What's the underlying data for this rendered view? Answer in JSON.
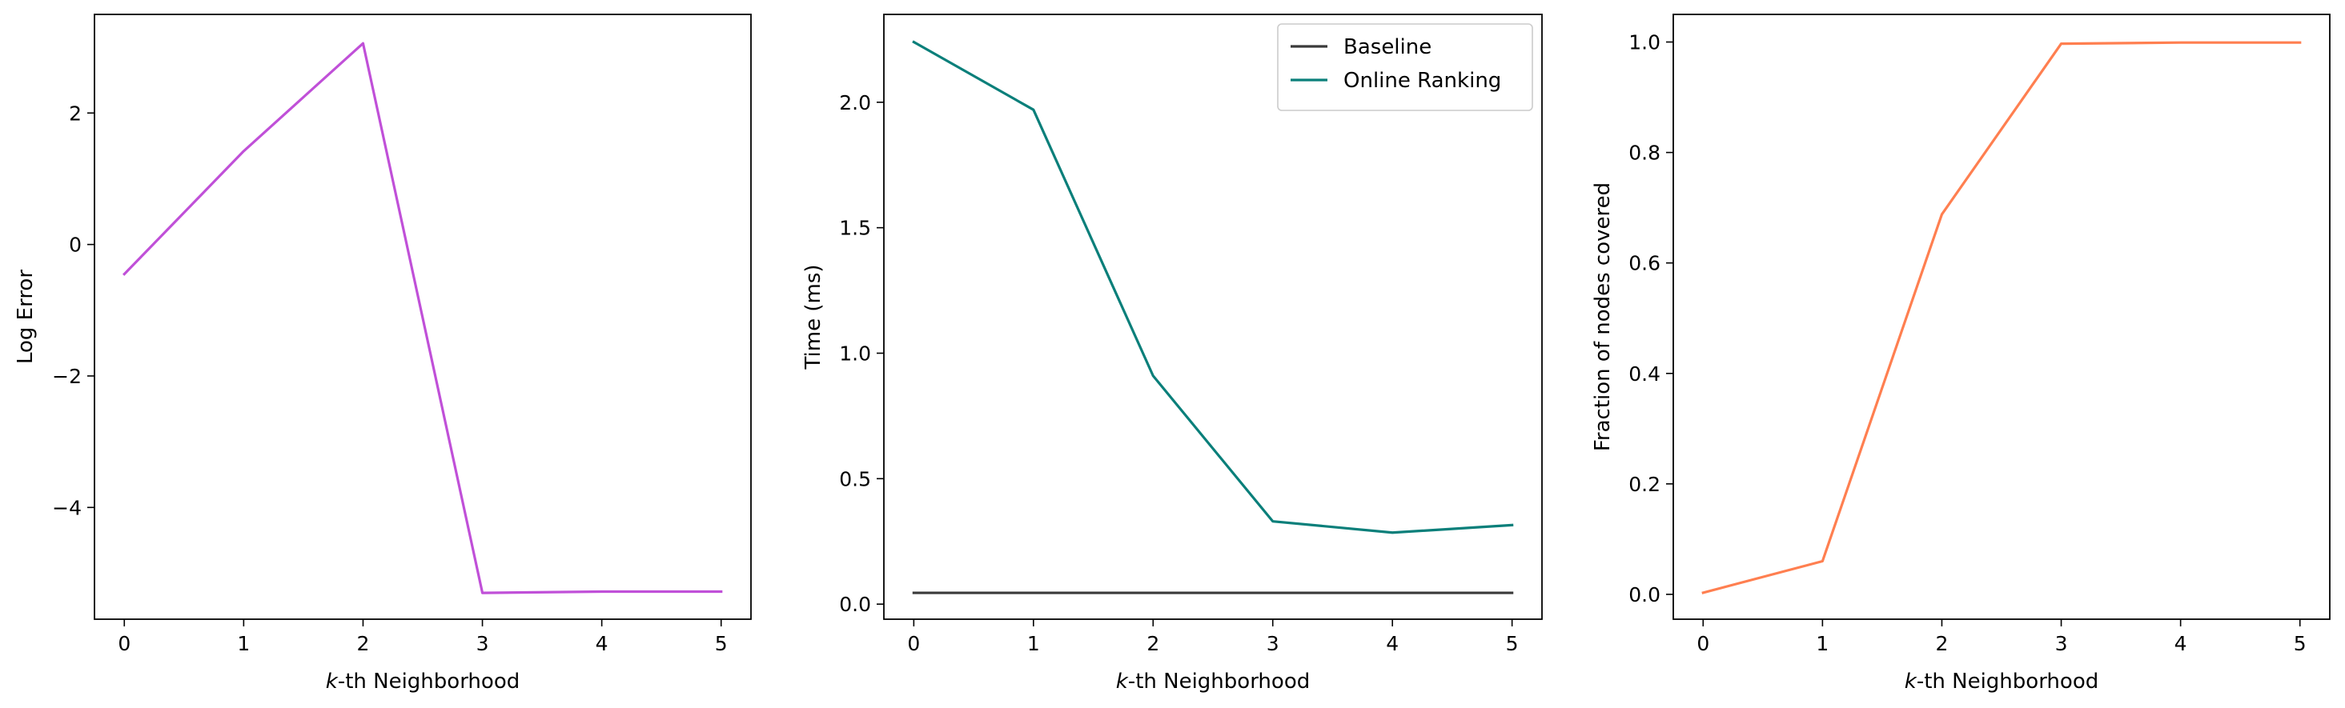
{
  "chart_data": [
    {
      "type": "line",
      "xlabel_prefix": "k",
      "xlabel": "-th Neighborhood",
      "ylabel": "Log Error",
      "x": [
        0,
        1,
        2,
        3,
        4,
        5
      ],
      "xticks": [
        "0",
        "1",
        "2",
        "3",
        "4",
        "5"
      ],
      "xlim": [
        -0.25,
        5.25
      ],
      "ylim": [
        -5.7,
        3.5
      ],
      "yticks": [
        {
          "value": 2,
          "label": "2"
        },
        {
          "value": 0,
          "label": "0"
        },
        {
          "value": -2,
          "label": "−2"
        },
        {
          "value": -4,
          "label": "−4"
        }
      ],
      "grid": false,
      "series": [
        {
          "values": [
            -0.45,
            1.42,
            3.06,
            -5.3,
            -5.28,
            -5.28
          ],
          "color": "#c050d8"
        }
      ]
    },
    {
      "type": "line",
      "xlabel_prefix": "k",
      "xlabel": "-th Neighborhood",
      "ylabel": "Time (ms)",
      "x": [
        0,
        1,
        2,
        3,
        4,
        5
      ],
      "xticks": [
        "0",
        "1",
        "2",
        "3",
        "4",
        "5"
      ],
      "xlim": [
        -0.25,
        5.25
      ],
      "ylim": [
        -0.06,
        2.35
      ],
      "yticks": [
        {
          "value": 0.0,
          "label": "0.0"
        },
        {
          "value": 0.5,
          "label": "0.5"
        },
        {
          "value": 1.0,
          "label": "1.0"
        },
        {
          "value": 1.5,
          "label": "1.5"
        },
        {
          "value": 2.0,
          "label": "2.0"
        }
      ],
      "grid": false,
      "legend": "top-right",
      "series": [
        {
          "name": "Baseline",
          "values": [
            0.045,
            0.045,
            0.045,
            0.045,
            0.045,
            0.045
          ],
          "color": "#3a3a3a"
        },
        {
          "name": "Online Ranking",
          "values": [
            2.24,
            1.97,
            0.91,
            0.33,
            0.285,
            0.315
          ],
          "color": "#0a7f7a"
        }
      ]
    },
    {
      "type": "line",
      "xlabel_prefix": "k",
      "xlabel": "-th Neighborhood",
      "ylabel": "Fraction of nodes covered",
      "x": [
        0,
        1,
        2,
        3,
        4,
        5
      ],
      "xticks": [
        "0",
        "1",
        "2",
        "3",
        "4",
        "5"
      ],
      "xlim": [
        -0.25,
        5.25
      ],
      "ylim": [
        -0.045,
        1.05
      ],
      "yticks": [
        {
          "value": 0.0,
          "label": "0.0"
        },
        {
          "value": 0.2,
          "label": "0.2"
        },
        {
          "value": 0.4,
          "label": "0.4"
        },
        {
          "value": 0.6,
          "label": "0.6"
        },
        {
          "value": 0.8,
          "label": "0.8"
        },
        {
          "value": 1.0,
          "label": "1.0"
        }
      ],
      "grid": false,
      "series": [
        {
          "values": [
            0.003,
            0.06,
            0.688,
            0.997,
            0.999,
            0.999
          ],
          "color": "#ff7f50"
        }
      ]
    }
  ]
}
